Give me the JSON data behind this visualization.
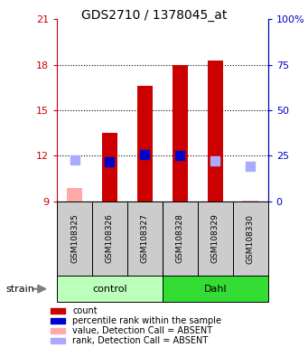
{
  "title": "GDS2710 / 1378045_at",
  "samples": [
    "GSM108325",
    "GSM108326",
    "GSM108327",
    "GSM108328",
    "GSM108329",
    "GSM108330"
  ],
  "groups": [
    {
      "label": "control",
      "indices": [
        0,
        1,
        2
      ],
      "color": "#bbffbb"
    },
    {
      "label": "Dahl",
      "indices": [
        3,
        4,
        5
      ],
      "color": "#33dd33"
    }
  ],
  "bar_values": [
    9.9,
    13.5,
    16.6,
    18.0,
    18.25,
    9.05
  ],
  "bar_base": 9.0,
  "bar_absent": [
    true,
    false,
    false,
    false,
    false,
    true
  ],
  "rank_values": [
    11.7,
    11.6,
    12.05,
    12.0,
    11.65,
    11.3
  ],
  "rank_absent": [
    true,
    false,
    false,
    false,
    true,
    true
  ],
  "ylim_left": [
    9,
    21
  ],
  "yticks_left": [
    9,
    12,
    15,
    18,
    21
  ],
  "ytick_labels_left": [
    "9",
    "12",
    "15",
    "18",
    "21"
  ],
  "ytick_labels_right": [
    "0",
    "25",
    "50",
    "75",
    "100%"
  ],
  "grid_values": [
    12,
    15,
    18
  ],
  "bar_color_present": "#cc0000",
  "bar_color_absent": "#ffaaaa",
  "rank_color_present": "#0000cc",
  "rank_color_absent": "#aaaaff",
  "bar_width": 0.45,
  "rank_marker_size": 55,
  "strain_label": "strain",
  "legend": [
    {
      "label": "count",
      "color": "#cc0000"
    },
    {
      "label": "percentile rank within the sample",
      "color": "#0000cc"
    },
    {
      "label": "value, Detection Call = ABSENT",
      "color": "#ffaaaa"
    },
    {
      "label": "rank, Detection Call = ABSENT",
      "color": "#aaaaff"
    }
  ],
  "left_yaxis_color": "#cc0000",
  "right_yaxis_color": "#0000cc",
  "sample_box_color": "#cccccc"
}
